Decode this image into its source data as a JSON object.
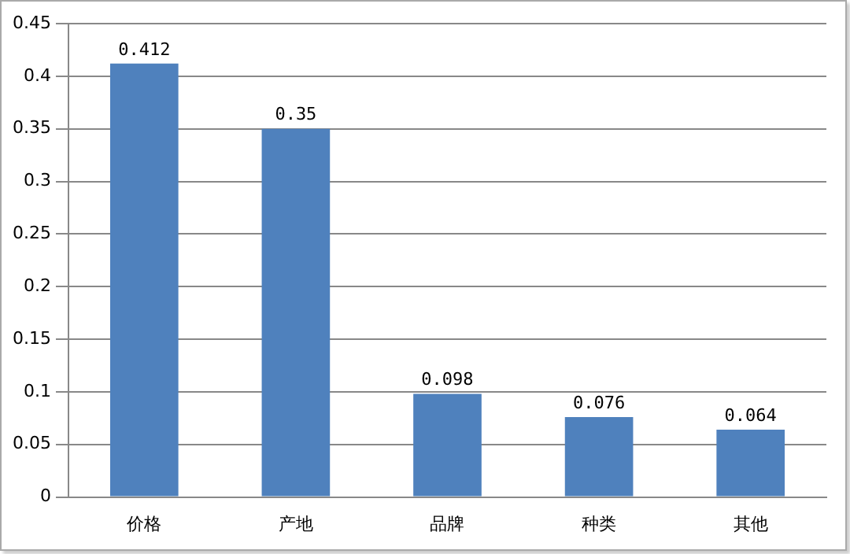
{
  "chart_data": {
    "type": "bar",
    "categories": [
      "价格",
      "产地",
      "品牌",
      "种类",
      "其他"
    ],
    "values": [
      0.412,
      0.35,
      0.098,
      0.076,
      0.064
    ],
    "color": "#4f81bd",
    "ylim": [
      0,
      0.45
    ],
    "yticks": [
      0,
      0.05,
      0.1,
      0.15,
      0.2,
      0.25,
      0.3,
      0.35,
      0.4,
      0.45
    ],
    "grid": "y",
    "legend": false,
    "data_labels": true
  }
}
